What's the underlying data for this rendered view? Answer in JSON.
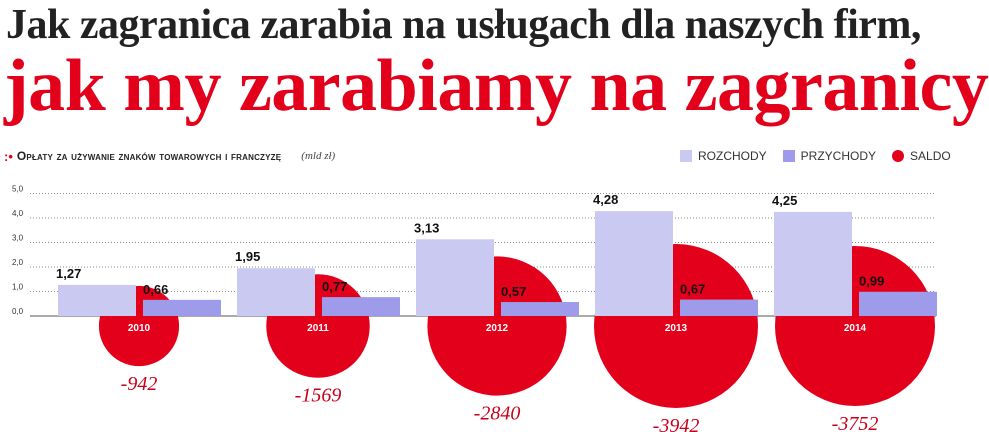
{
  "header": {
    "title_line1": "Jak zagranica zarabia na usługach dla naszych firm,",
    "title_line2": "jak my zarabiamy na zagranicy",
    "subtitle_bullet": ":•",
    "subtitle": "Opłaty za używanie znaków towarowych i franczyzę",
    "unit": "(mld zł)"
  },
  "legend": [
    {
      "key": "rozchody",
      "label": "ROZCHODY",
      "color": "#c9c9f2",
      "shape": "square"
    },
    {
      "key": "przychody",
      "label": "PRZYCHODY",
      "color": "#9d9bea",
      "shape": "square"
    },
    {
      "key": "saldo",
      "label": "SALDO",
      "color": "#e3001b",
      "shape": "circle"
    }
  ],
  "chart_data": {
    "type": "bar",
    "title": "Opłaty za używanie znaków towarowych i franczyzę",
    "unit": "mld zł",
    "categories": [
      "2010",
      "2011",
      "2012",
      "2013",
      "2014"
    ],
    "ylim": [
      0,
      5
    ],
    "yticks": [
      "0,0",
      "1,0",
      "2,0",
      "3,0",
      "4,0",
      "5,0"
    ],
    "ytick_values": [
      0,
      1,
      2,
      3,
      4,
      5
    ],
    "grid": true,
    "series": [
      {
        "name": "ROZCHODY",
        "values": [
          1.27,
          1.95,
          3.13,
          4.28,
          4.25
        ],
        "labels": [
          "1,27",
          "1,95",
          "3,13",
          "4,28",
          "4,25"
        ],
        "color": "#c9c9f2"
      },
      {
        "name": "PRZYCHODY",
        "values": [
          0.66,
          0.77,
          0.57,
          0.67,
          0.99
        ],
        "labels": [
          "0,66",
          "0,77",
          "0,57",
          "0,67",
          "0,99"
        ],
        "color": "#9d9bea"
      },
      {
        "name": "SALDO",
        "values": [
          -942,
          -1569,
          -2840,
          -3942,
          -3752
        ],
        "labels": [
          "-942",
          "-1569",
          "-2840",
          "-3942",
          "-3752"
        ],
        "color": "#e3001b",
        "shape": "circle"
      }
    ]
  }
}
